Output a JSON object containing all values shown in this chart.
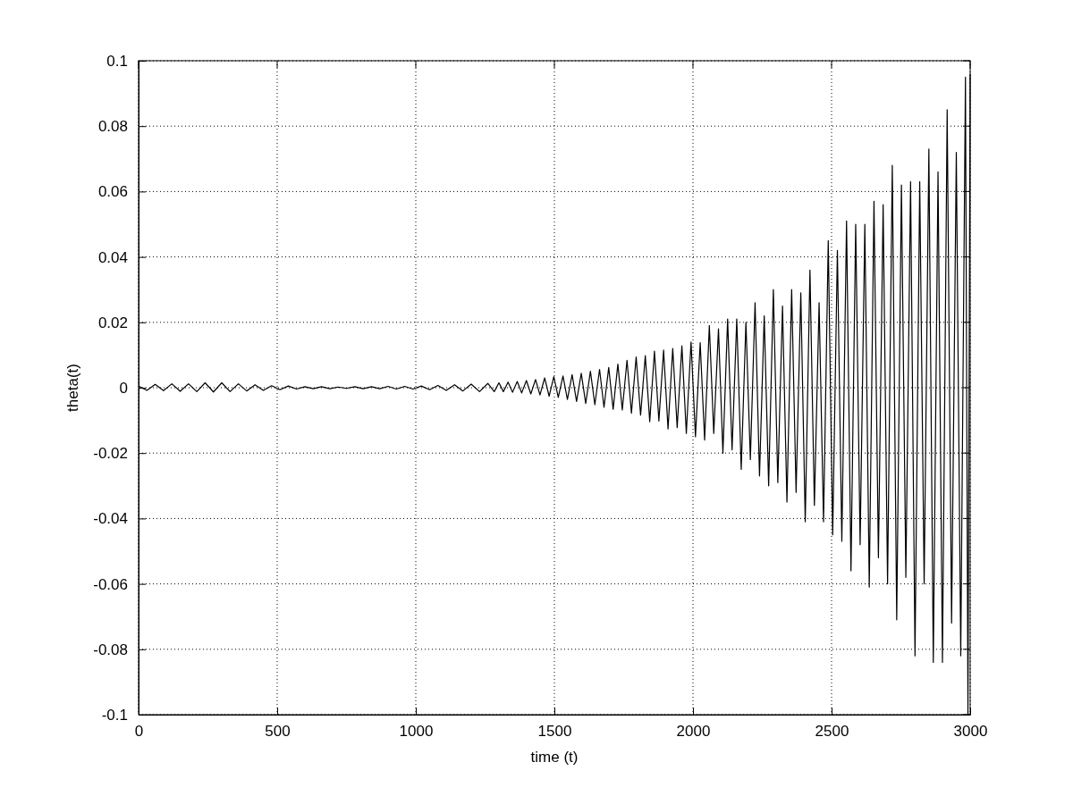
{
  "chart_data": {
    "type": "line",
    "xlabel": "time (t)",
    "ylabel": "theta(t)",
    "xlim": [
      0,
      3000
    ],
    "xticks": [
      0,
      500,
      1000,
      1500,
      2000,
      2500,
      3000
    ],
    "ylim": [
      -0.1,
      0.1
    ],
    "yticks": [
      -0.1,
      -0.08,
      -0.06,
      -0.04,
      -0.02,
      0,
      0.02,
      0.04,
      0.06,
      0.08,
      0.1
    ],
    "grid": true,
    "line_style": "solid",
    "series": [
      {
        "color": "#000000",
        "x": [
          0,
          30,
          60,
          90,
          120,
          150,
          180,
          210,
          240,
          270,
          300,
          330,
          360,
          390,
          420,
          450,
          480,
          510,
          540,
          570,
          600,
          630,
          660,
          690,
          720,
          750,
          780,
          810,
          840,
          870,
          900,
          930,
          960,
          990,
          1020,
          1050,
          1080,
          1110,
          1140,
          1170,
          1200,
          1230,
          1260,
          1283,
          1300,
          1316,
          1333,
          1349,
          1366,
          1382,
          1399,
          1415,
          1432,
          1448,
          1465,
          1481,
          1498,
          1514,
          1531,
          1547,
          1564,
          1580,
          1597,
          1613,
          1630,
          1646,
          1663,
          1679,
          1696,
          1712,
          1729,
          1745,
          1762,
          1778,
          1795,
          1811,
          1828,
          1844,
          1861,
          1877,
          1894,
          1910,
          1927,
          1943,
          1960,
          1976,
          1993,
          2009,
          2026,
          2042,
          2059,
          2075,
          2092,
          2108,
          2125,
          2141,
          2158,
          2174,
          2191,
          2207,
          2224,
          2240,
          2257,
          2273,
          2290,
          2306,
          2323,
          2339,
          2356,
          2372,
          2389,
          2405,
          2422,
          2438,
          2455,
          2471,
          2488,
          2504,
          2521,
          2537,
          2554,
          2570,
          2587,
          2603,
          2620,
          2636,
          2653,
          2669,
          2686,
          2702,
          2719,
          2735,
          2752,
          2768,
          2785,
          2801,
          2818,
          2834,
          2851,
          2867,
          2884,
          2900,
          2917,
          2933,
          2950,
          2966,
          2983,
          2992,
          3000
        ],
        "values": [
          0.0005,
          -0.0008,
          0.001,
          -0.0009,
          0.0012,
          -0.0011,
          0.0012,
          -0.0012,
          0.0015,
          -0.0013,
          0.0015,
          -0.0012,
          0.0012,
          -0.001,
          0.0009,
          -0.0008,
          0.0006,
          -0.0006,
          0.0005,
          -0.0004,
          0.0003,
          -0.0003,
          0.0003,
          -0.0003,
          0.0002,
          -0.0002,
          0.0003,
          -0.0003,
          0.0003,
          -0.0003,
          0.0004,
          -0.0004,
          0.0004,
          -0.0004,
          0.0005,
          -0.0006,
          0.0007,
          -0.0008,
          0.0009,
          -0.001,
          0.0011,
          -0.0012,
          0.0013,
          -0.0012,
          0.0015,
          -0.0012,
          0.0017,
          -0.0014,
          0.0019,
          -0.0016,
          0.0022,
          -0.0019,
          0.0025,
          -0.0022,
          0.003,
          -0.0026,
          0.0034,
          -0.003,
          0.0036,
          -0.0036,
          0.004,
          -0.0042,
          0.0044,
          -0.0048,
          0.005,
          -0.0052,
          0.0056,
          -0.006,
          0.0062,
          -0.0066,
          0.0072,
          -0.0068,
          0.0084,
          -0.0078,
          0.0094,
          -0.0084,
          0.0098,
          -0.0104,
          0.0112,
          -0.0102,
          0.0115,
          -0.0126,
          0.012,
          -0.0122,
          0.0128,
          -0.014,
          0.014,
          -0.015,
          0.0138,
          -0.016,
          0.019,
          -0.014,
          0.018,
          -0.02,
          0.021,
          -0.019,
          0.021,
          -0.025,
          0.02,
          -0.022,
          0.026,
          -0.027,
          0.022,
          -0.03,
          0.03,
          -0.029,
          0.025,
          -0.035,
          0.03,
          -0.032,
          0.029,
          -0.041,
          0.036,
          -0.036,
          0.026,
          -0.041,
          0.045,
          -0.045,
          0.042,
          -0.047,
          0.051,
          -0.056,
          0.05,
          -0.048,
          0.05,
          -0.061,
          0.057,
          -0.052,
          0.056,
          -0.06,
          0.068,
          -0.071,
          0.062,
          -0.058,
          0.063,
          -0.082,
          0.063,
          -0.06,
          0.073,
          -0.084,
          0.066,
          -0.084,
          0.085,
          -0.072,
          0.072,
          -0.082,
          0.095,
          -0.1,
          0.096
        ]
      }
    ]
  }
}
